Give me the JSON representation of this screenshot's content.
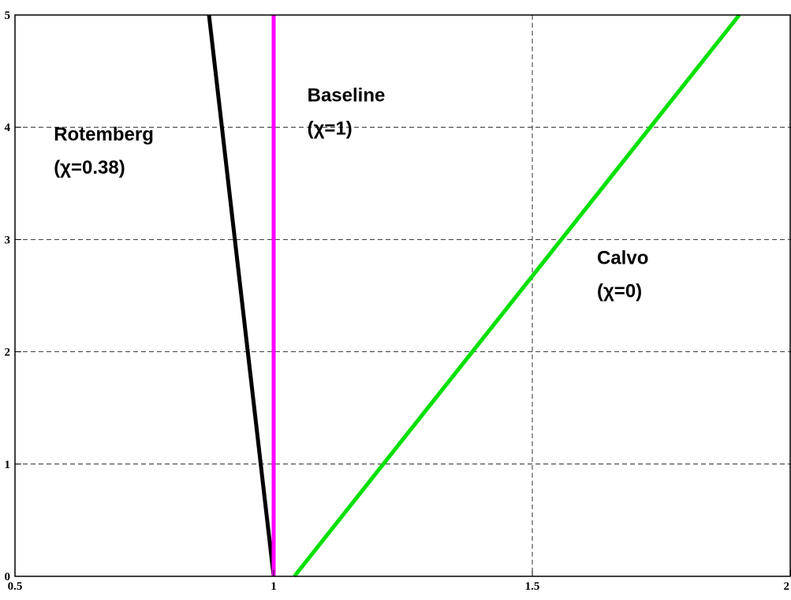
{
  "chart_data": {
    "type": "line",
    "title": "",
    "xlabel": "",
    "ylabel": "",
    "xlim": [
      0.5,
      2
    ],
    "ylim": [
      0,
      5
    ],
    "x_ticks": [
      0.5,
      1,
      1.5,
      2
    ],
    "x_tick_labels": [
      "0.5",
      "1",
      "1.5",
      "2"
    ],
    "y_ticks": [
      0,
      1,
      2,
      3,
      4,
      5
    ],
    "y_tick_labels": [
      "0",
      "1",
      "2",
      "3",
      "4",
      "5"
    ],
    "grid": true,
    "series": [
      {
        "name": "Rotemberg",
        "label_line2": "(χ=0.38)",
        "color": "#000000",
        "x": [
          1.0,
          0.875
        ],
        "y": [
          0,
          5
        ]
      },
      {
        "name": "Baseline",
        "label_line2": "(χ=1)",
        "color": "#ff00ff",
        "x": [
          1.0,
          1.0
        ],
        "y": [
          0,
          5
        ]
      },
      {
        "name": "Calvo",
        "label_line2": "(χ=0)",
        "color": "#00e000",
        "x": [
          1.04,
          1.9
        ],
        "y": [
          0,
          5
        ]
      }
    ]
  }
}
